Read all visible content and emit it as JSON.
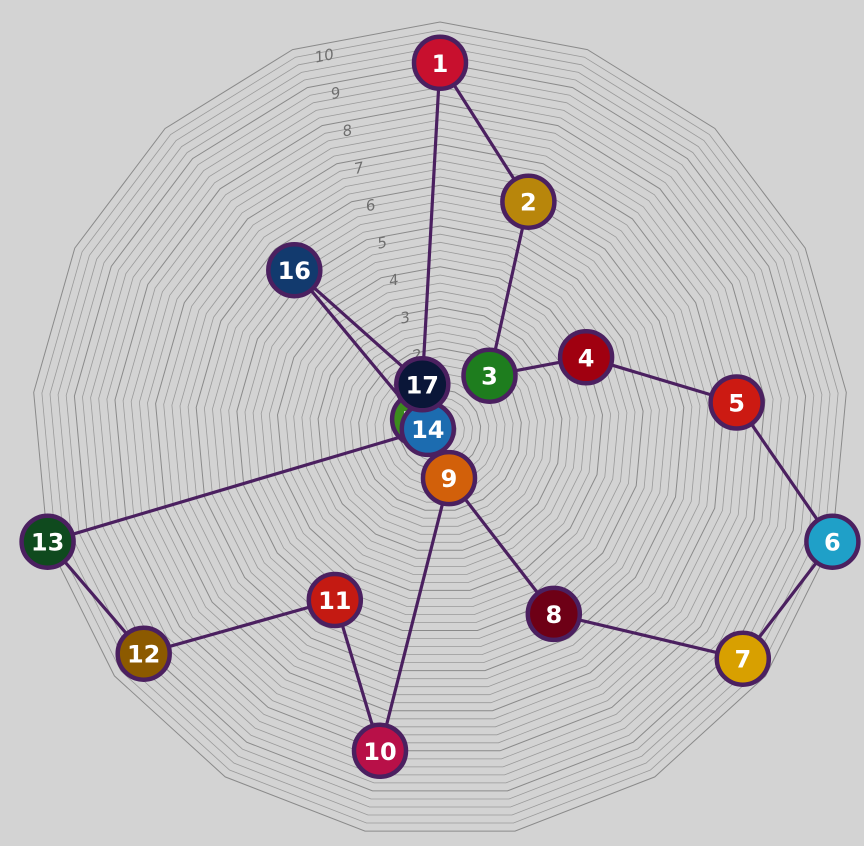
{
  "chart_data": {
    "type": "radar-network",
    "sides": 17,
    "rmax": 10,
    "ring_steps": 50,
    "tick_labels": [
      "2",
      "3",
      "4",
      "5",
      "6",
      "7",
      "8",
      "9",
      "10"
    ],
    "edge_color": "#4b2060",
    "nodes": [
      {
        "label": "1",
        "index": 0,
        "r": 9.0,
        "color": "#c8102e"
      },
      {
        "label": "2",
        "index": 1,
        "r": 6.0,
        "color": "#b8860b"
      },
      {
        "label": "3",
        "index": 2,
        "r": 1.8,
        "color": "#1e7d1e"
      },
      {
        "label": "4",
        "index": 3,
        "r": 4.0,
        "color": "#a00010"
      },
      {
        "label": "5",
        "index": 4,
        "r": 7.3,
        "color": "#cc1a12"
      },
      {
        "label": "6",
        "index": 5,
        "r": 10.0,
        "color": "#1fa0c8"
      },
      {
        "label": "7",
        "index": 6,
        "r": 9.3,
        "color": "#d8a000"
      },
      {
        "label": "8",
        "index": 7,
        "r": 5.3,
        "color": "#6e0016"
      },
      {
        "label": "9",
        "index": 8,
        "r": 1.2,
        "color": "#d2600a"
      },
      {
        "label": "10",
        "index": 9,
        "r": 8.0,
        "color": "#b81048"
      },
      {
        "label": "11",
        "index": 10,
        "r": 4.9,
        "color": "#c41a12"
      },
      {
        "label": "12",
        "index": 11,
        "r": 9.1,
        "color": "#8c5a00"
      },
      {
        "label": "13",
        "index": 12,
        "r": 10.0,
        "color": "#0f4a1e"
      },
      {
        "label": "14",
        "index": 13,
        "r": 0.3,
        "color": "#1c6cb0"
      },
      {
        "label": "15",
        "index": 14,
        "r": 0.6,
        "color": "#3c8c1e"
      },
      {
        "label": "16",
        "index": 15,
        "r": 5.3,
        "color": "#123a6e"
      },
      {
        "label": "17",
        "index": 16,
        "r": 1.2,
        "color": "#0a1638"
      }
    ],
    "edges": [
      [
        1,
        2
      ],
      [
        2,
        3
      ],
      [
        3,
        4
      ],
      [
        4,
        5
      ],
      [
        5,
        6
      ],
      [
        6,
        7
      ],
      [
        7,
        8
      ],
      [
        8,
        9
      ],
      [
        9,
        10
      ],
      [
        10,
        11
      ],
      [
        11,
        12
      ],
      [
        12,
        13
      ],
      [
        13,
        14
      ],
      [
        14,
        15
      ],
      [
        15,
        16
      ],
      [
        16,
        17
      ],
      [
        17,
        1
      ]
    ]
  }
}
